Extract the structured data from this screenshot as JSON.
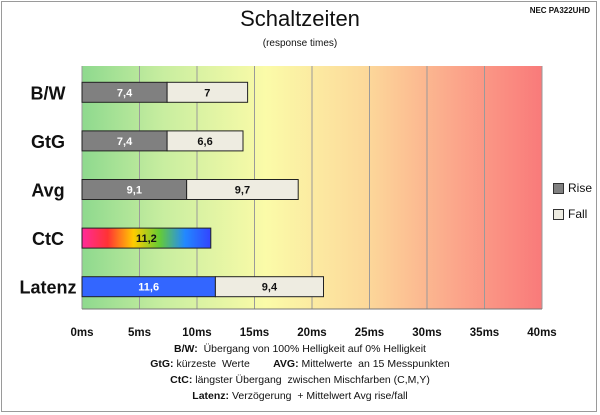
{
  "header": {
    "title": "Schaltzeiten",
    "subtitle": "(response times)",
    "model": "NEC PA322UHD"
  },
  "chart_data": {
    "type": "bar",
    "orientation": "horizontal",
    "stacked": true,
    "categories": [
      "B/W",
      "GtG",
      "Avg",
      "CtC",
      "Latenz"
    ],
    "series": [
      {
        "name": "Rise",
        "values": [
          7.4,
          7.4,
          9.1,
          null,
          null
        ],
        "color": "#808080"
      },
      {
        "name": "Fall",
        "values": [
          7,
          6.6,
          9.7,
          null,
          null
        ],
        "color": "#eeece1"
      }
    ],
    "single_bars": {
      "CtC": {
        "value": 11.2,
        "label": "11,2",
        "fill": "rainbow-gradient"
      },
      "Latenz": {
        "segments": [
          {
            "value": 11.6,
            "label": "11,6",
            "color": "#3366ff"
          },
          {
            "value": 9.4,
            "label": "9,4",
            "color": "#eeece1"
          }
        ]
      }
    },
    "bar_labels": [
      [
        "7,4",
        "7"
      ],
      [
        "7,4",
        "6,6"
      ],
      [
        "9,1",
        "9,7"
      ]
    ],
    "xlim": [
      0,
      40
    ],
    "xticks": [
      "0ms",
      "5ms",
      "10ms",
      "15ms",
      "20ms",
      "25ms",
      "30ms",
      "35ms",
      "40ms"
    ],
    "grid": true,
    "background": "green-yellow-red gradient",
    "legend": {
      "position": "right",
      "entries": [
        "Rise",
        "Fall"
      ]
    }
  },
  "footer": [
    {
      "key": "B/W:",
      "text": "  Übergang von 100% Helligkeit auf 0% Helligkeit"
    },
    {
      "key": "GtG:",
      "text": " kürzeste  Werte",
      "key2": "AVG:",
      "text2": " Mittelwerte  an 15 Messpunkten"
    },
    {
      "key": "CtC:",
      "text": " längster Übergang  zwischen Mischfarben (C,M,Y)"
    },
    {
      "key": "Latenz:",
      "text": " Verzögerung  + Mittelwert Avg rise/fall"
    }
  ]
}
